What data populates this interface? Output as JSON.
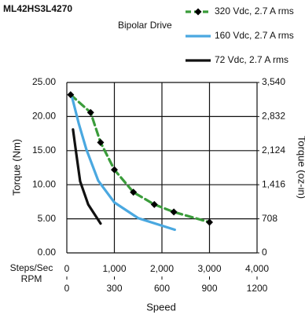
{
  "chart_data": {
    "type": "line",
    "title": "ML42HS3L4270",
    "subtitle": "Bipolar Drive",
    "xlabel": "Speed",
    "ylabel": "Torque (Nm)",
    "y2label": "Torque (oz-in)",
    "xaxis_label": "Steps/Sec",
    "x2axis_label": "RPM",
    "xlim": [
      0,
      4000
    ],
    "xticks": [
      0,
      {
        "value": 1000,
        "label": "1,000"
      },
      {
        "value": 2000,
        "label": "2,000"
      },
      {
        "value": 3000,
        "label": "3,000"
      },
      {
        "value": 4000,
        "label": "4,000"
      }
    ],
    "x2lim": [
      0,
      1200
    ],
    "x2ticks": [
      0,
      300,
      600,
      900,
      1200
    ],
    "ylim": [
      0,
      25
    ],
    "yticks": [
      {
        "value": 0,
        "label": "0.00"
      },
      {
        "value": 5,
        "label": "5.00"
      },
      {
        "value": 10,
        "label": "10.00"
      },
      {
        "value": 15,
        "label": "15.00"
      },
      {
        "value": 20,
        "label": "20.00"
      },
      {
        "value": 25,
        "label": "25.00"
      }
    ],
    "y2lim": [
      0,
      3540
    ],
    "y2ticks": [
      0,
      708,
      {
        "value": 1416,
        "label": "1,416"
      },
      {
        "value": 2124,
        "label": "2,124"
      },
      {
        "value": 2832,
        "label": "2,832"
      },
      {
        "value": 3540,
        "label": "3,540"
      }
    ],
    "grid": true,
    "series": [
      {
        "name": "320 Vdc, 2.7 A rms",
        "color": "#3a9c3a",
        "dashed": true,
        "marker": "diamond",
        "x": [
          80,
          500,
          710,
          1000,
          1400,
          1840,
          2250,
          3000
        ],
        "values": [
          23.2,
          20.6,
          16.2,
          12.2,
          8.9,
          7.1,
          6.0,
          4.5
        ]
      },
      {
        "name": "160 Vdc, 2.7 A rms",
        "color": "#4aa8e0",
        "x": [
          115,
          250,
          410,
          660,
          1000,
          1500,
          2270
        ],
        "values": [
          22.7,
          19.0,
          15.2,
          10.6,
          7.4,
          5.1,
          3.4
        ]
      },
      {
        "name": "72 Vdc, 2.7 A rms",
        "color": "#111111",
        "x": [
          130,
          200,
          280,
          450,
          710
        ],
        "values": [
          18.1,
          14.5,
          10.5,
          7.1,
          4.3
        ]
      }
    ]
  }
}
